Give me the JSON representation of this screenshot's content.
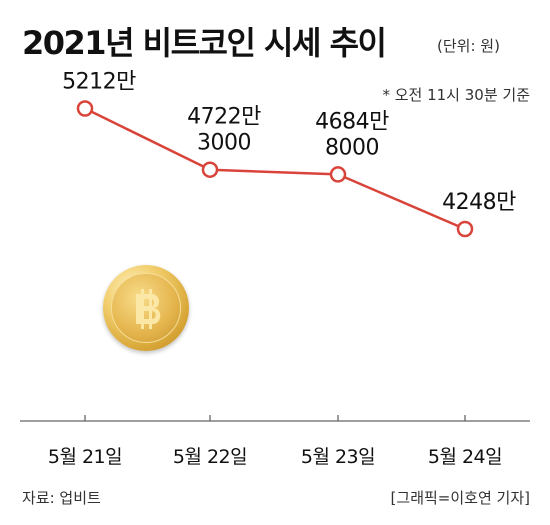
{
  "title": "2021년 비트코인 시세 추이",
  "unit": "(단위: 원)",
  "note": "* 오전 11시 30분 기준",
  "source": "자료: 업비트",
  "credit": "[그래픽=이호연 기자]",
  "colors": {
    "line": "#d9443a",
    "marker_fill": "#ffffff",
    "axis": "#666666",
    "coin": "#e4b44c"
  },
  "icons": [
    "bitcoin-coin-icon"
  ],
  "chart_data": {
    "type": "line",
    "title": "2021년 비트코인 시세 추이",
    "categories": [
      "5월 21일",
      "5월 22일",
      "5월 23일",
      "5월 24일"
    ],
    "series": [
      {
        "values": [
          52120000,
          47223000,
          46848000,
          42480000
        ]
      }
    ],
    "data_labels": [
      [
        "5212만"
      ],
      [
        "4722만",
        "3000"
      ],
      [
        "4684만",
        "8000"
      ],
      [
        "4248만"
      ]
    ],
    "ylim": [
      28000000,
      56000000
    ],
    "grid": false,
    "legend": "none"
  }
}
